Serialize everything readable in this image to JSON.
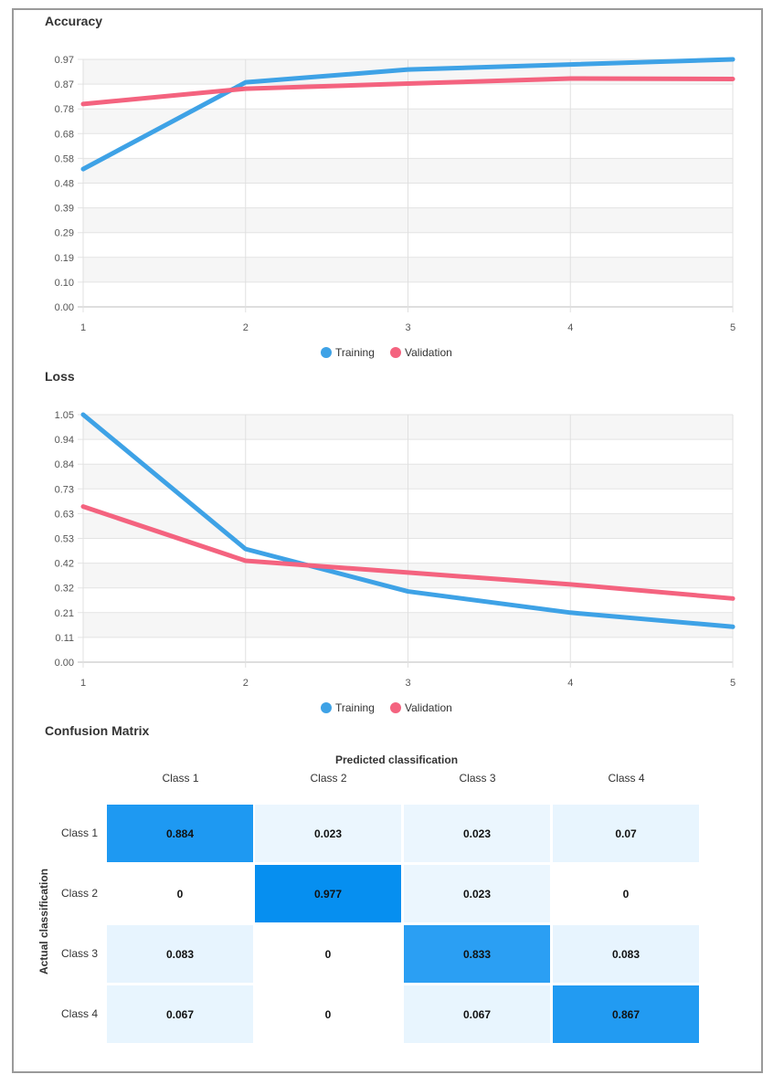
{
  "chart_data": [
    {
      "type": "line",
      "title": "Accuracy",
      "x": [
        1,
        2,
        3,
        4,
        5
      ],
      "y_ticks": [
        "0.00",
        "0.10",
        "0.19",
        "0.29",
        "0.39",
        "0.48",
        "0.58",
        "0.68",
        "0.78",
        "0.87",
        "0.97"
      ],
      "ylim": [
        0,
        0.97
      ],
      "grid": true,
      "legend_position": "bottom",
      "series": [
        {
          "name": "Training",
          "color": "#3ea2e6",
          "values": [
            0.54,
            0.88,
            0.93,
            0.95,
            0.97
          ]
        },
        {
          "name": "Validation",
          "color": "#f4637f",
          "values": [
            0.795,
            0.855,
            0.875,
            0.895,
            0.893
          ]
        }
      ]
    },
    {
      "type": "line",
      "title": "Loss",
      "x": [
        1,
        2,
        3,
        4,
        5
      ],
      "y_ticks": [
        "0.00",
        "0.11",
        "0.21",
        "0.32",
        "0.42",
        "0.53",
        "0.63",
        "0.73",
        "0.84",
        "0.94",
        "1.05"
      ],
      "ylim": [
        0,
        1.05
      ],
      "grid": true,
      "legend_position": "bottom",
      "series": [
        {
          "name": "Training",
          "color": "#3ea2e6",
          "values": [
            1.05,
            0.48,
            0.3,
            0.21,
            0.15
          ]
        },
        {
          "name": "Validation",
          "color": "#f4637f",
          "values": [
            0.66,
            0.43,
            0.38,
            0.33,
            0.27
          ]
        }
      ]
    },
    {
      "type": "heatmap",
      "title": "Confusion Matrix",
      "xlabel": "Predicted classification",
      "ylabel": "Actual classification",
      "columns": [
        "Class 1",
        "Class 2",
        "Class 3",
        "Class 4"
      ],
      "rows": [
        "Class 1",
        "Class 2",
        "Class 3",
        "Class 4"
      ],
      "cells": [
        [
          "0.884",
          "0.023",
          "0.023",
          "0.07"
        ],
        [
          "0",
          "0.977",
          "0.023",
          "0"
        ],
        [
          "0.083",
          "0",
          "0.833",
          "0.083"
        ],
        [
          "0.067",
          "0",
          "0.067",
          "0.867"
        ]
      ]
    }
  ]
}
